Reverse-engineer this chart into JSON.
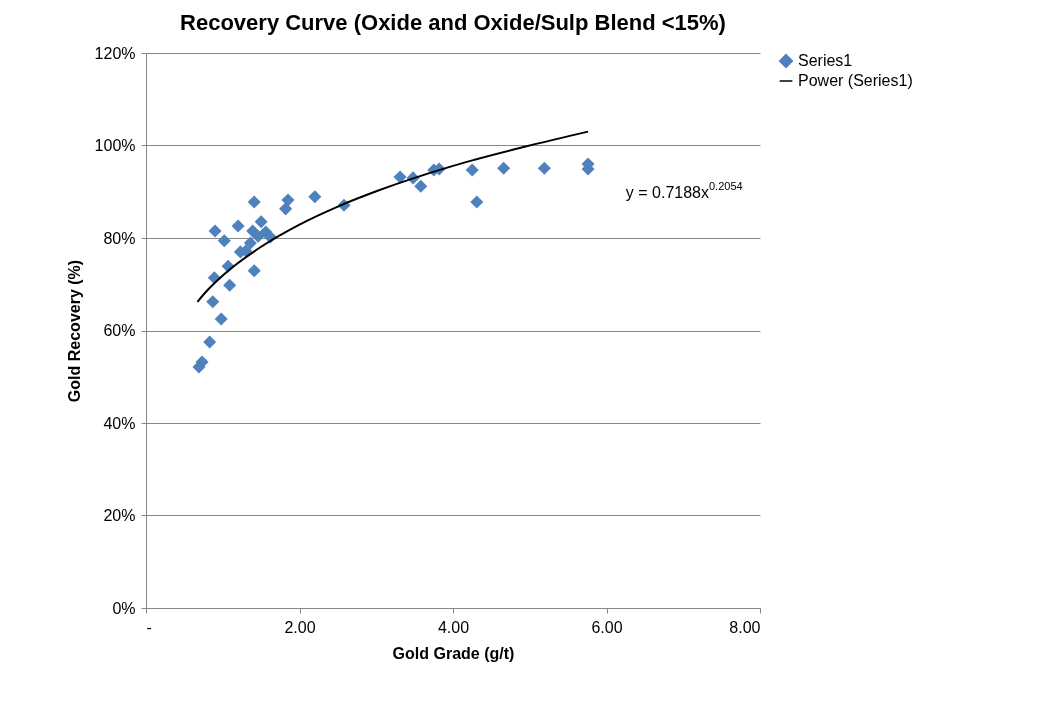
{
  "chart_data": {
    "type": "scatter",
    "title": "Recovery Curve (Oxide and Oxide/Sulp Blend <15%)",
    "xlabel": "Gold Grade (g/t)",
    "ylabel": "Gold Recovery (%)",
    "xlim": [
      0,
      8
    ],
    "xticks": [
      {
        "value": 0,
        "label": "-"
      },
      {
        "value": 2,
        "label": "2.00"
      },
      {
        "value": 4,
        "label": "4.00"
      },
      {
        "value": 6,
        "label": "6.00"
      },
      {
        "value": 8,
        "label": "8.00"
      }
    ],
    "ylim": [
      0,
      1.2
    ],
    "yticks": [
      {
        "value": 0,
        "label": "0%"
      },
      {
        "value": 0.2,
        "label": "20%"
      },
      {
        "value": 0.4,
        "label": "40%"
      },
      {
        "value": 0.6,
        "label": "60%"
      },
      {
        "value": 0.8,
        "label": "80%"
      },
      {
        "value": 1,
        "label": "100%"
      },
      {
        "value": 1.2,
        "label": "120%"
      }
    ],
    "grid": "y",
    "legend": "right",
    "series": [
      {
        "name": "Series1",
        "type": "scatter",
        "marker": "diamond",
        "color": "#4f81bd",
        "x": [
          0.69,
          0.73,
          0.83,
          0.87,
          0.89,
          0.9,
          0.98,
          1.02,
          1.07,
          1.09,
          1.2,
          1.23,
          1.3,
          1.36,
          1.39,
          1.41,
          1.41,
          1.46,
          1.5,
          1.56,
          1.62,
          1.82,
          1.85,
          2.2,
          2.58,
          3.31,
          3.48,
          3.58,
          3.75,
          3.82,
          4.25,
          4.31,
          4.66,
          5.19,
          5.76,
          5.76
        ],
        "values": [
          0.521,
          0.532,
          0.575,
          0.662,
          0.714,
          0.815,
          0.625,
          0.794,
          0.739,
          0.698,
          0.826,
          0.77,
          0.772,
          0.789,
          0.815,
          0.878,
          0.729,
          0.804,
          0.835,
          0.813,
          0.802,
          0.863,
          0.882,
          0.889,
          0.871,
          0.932,
          0.93,
          0.912,
          0.947,
          0.949,
          0.947,
          0.878,
          0.951,
          0.951,
          0.96,
          0.949
        ]
      },
      {
        "name": "Power (Series1)",
        "type": "line",
        "marker": "none",
        "color": "#000000",
        "x": [
          0.67,
          0.8,
          1,
          1.5,
          2,
          2.5,
          3,
          4,
          5,
          5.76
        ],
        "values": [
          0.662,
          0.687,
          0.719,
          0.781,
          0.829,
          0.868,
          0.901,
          0.956,
          1.0,
          1.03
        ]
      }
    ],
    "annotations": [
      "y = 0.7188x$^{0.2054}$"
    ]
  }
}
